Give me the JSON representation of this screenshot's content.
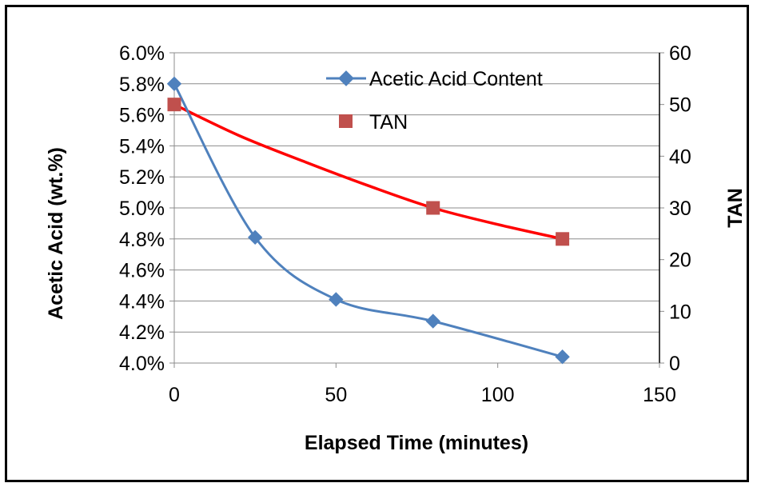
{
  "chart_data": {
    "type": "line",
    "title": "",
    "xlabel": "Elapsed Time (minutes)",
    "ylabel": "Acetic Acid (wt.%)",
    "y2label": "TAN",
    "xlim": [
      0,
      150
    ],
    "x_ticks": [
      0,
      50,
      100,
      150
    ],
    "ylim": [
      4.0,
      6.0
    ],
    "y_ticks": [
      "4.0%",
      "4.2%",
      "4.4%",
      "4.6%",
      "4.8%",
      "5.0%",
      "5.2%",
      "5.4%",
      "5.6%",
      "5.8%",
      "6.0%"
    ],
    "y2lim": [
      0,
      60
    ],
    "y2_ticks": [
      0,
      10,
      20,
      30,
      40,
      50,
      60
    ],
    "grid": true,
    "legend_position": "top-right",
    "series": [
      {
        "name": "Acetic Acid Content",
        "axis": "left",
        "marker": "diamond",
        "color": "#4f81bd",
        "x": [
          0,
          25,
          50,
          80,
          120
        ],
        "values": [
          5.8,
          4.81,
          4.41,
          4.27,
          4.04
        ]
      },
      {
        "name": "TAN",
        "axis": "right",
        "marker": "square",
        "color": "#c0504d",
        "x": [
          0,
          80,
          120
        ],
        "values": [
          50,
          30,
          24
        ]
      }
    ],
    "trendline": {
      "series": "TAN",
      "color": "#ff0000",
      "x": [
        0,
        20,
        40,
        60,
        80,
        100,
        120
      ],
      "values": [
        50,
        44,
        39,
        34.3,
        30,
        26.8,
        24
      ]
    }
  }
}
